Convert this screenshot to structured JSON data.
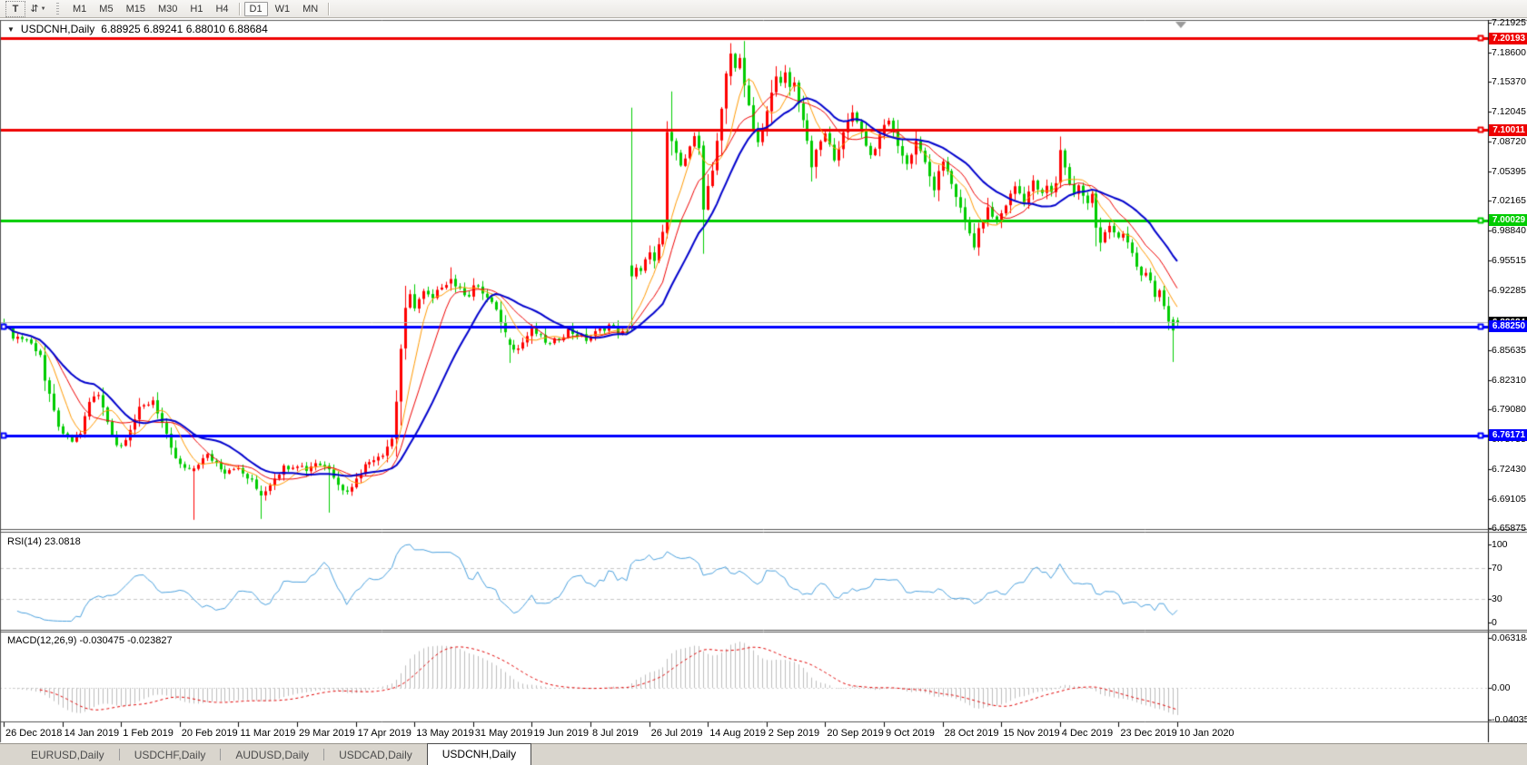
{
  "toolbar": {
    "text_tool_icon": "T",
    "tools_icon": "⇵",
    "tools_caret_icon": "▼",
    "timeframes": [
      "M1",
      "M5",
      "M15",
      "M30",
      "H1",
      "H4",
      "D1",
      "W1",
      "MN"
    ],
    "active_timeframe": "D1"
  },
  "chart": {
    "dropdown_icon": "▼",
    "title": "USDCNH,Daily",
    "ohlc_text": "6.88925 6.89241 6.88010 6.88684"
  },
  "indicators": {
    "rsi": {
      "label": "RSI(14) 23.0818",
      "period": 14,
      "value": 23.0818,
      "levels": [
        70,
        30
      ],
      "scale_labels": [
        {
          "text": "100",
          "value": 100
        },
        {
          "text": "70",
          "value": 70
        },
        {
          "text": "30",
          "value": 30
        },
        {
          "text": "0",
          "value": 0
        }
      ]
    },
    "macd": {
      "label": "MACD(12,26,9) -0.030475 -0.023827",
      "main_value": -0.030475,
      "signal_value": -0.023827,
      "scale_labels": [
        {
          "text": "0.063184",
          "value": 0.063184
        },
        {
          "text": "0.00",
          "value": 0
        },
        {
          "text": "-0.040355",
          "value": -0.040355
        }
      ]
    }
  },
  "tabs": [
    {
      "label": "EURUSD,Daily",
      "active": false
    },
    {
      "label": "USDCHF,Daily",
      "active": false
    },
    {
      "label": "AUDUSD,Daily",
      "active": false
    },
    {
      "label": "USDCAD,Daily",
      "active": false
    },
    {
      "label": "USDCNH,Daily",
      "active": true
    }
  ],
  "chart_data": {
    "type": "candlestick",
    "symbol": "USDCNH",
    "timeframe": "Daily",
    "up_color": "#FF0000",
    "down_color": "#00CC00",
    "last_bar": {
      "open": 6.88925,
      "high": 6.89241,
      "low": 6.8801,
      "close": 6.88684
    },
    "current_price": {
      "value": 6.88684,
      "line_color": "#b4b4b4",
      "badge_bg": "#000000",
      "text": "6.88684"
    },
    "levels": [
      {
        "price": 7.20193,
        "color": "#EE0000",
        "text": "7.20193",
        "left_marker": false
      },
      {
        "price": 7.10011,
        "color": "#EE0000",
        "text": "7.10011",
        "left_marker": false
      },
      {
        "price": 7.00029,
        "color": "#00CC00",
        "text": "7.00029",
        "left_marker": false
      },
      {
        "price": 6.8825,
        "color": "#0000FF",
        "text": "6.88250",
        "left_marker": true
      },
      {
        "price": 6.76171,
        "color": "#0000FF",
        "text": "6.76171",
        "left_marker": true
      }
    ],
    "moving_averages": [
      {
        "name": "fast",
        "window": 7,
        "color": "#FF9900",
        "width": 1
      },
      {
        "name": "medium",
        "window": 12,
        "color": "#EE0000",
        "width": 1
      },
      {
        "name": "slow",
        "window": 21,
        "color": "#0000CC",
        "width": 2
      }
    ],
    "price_axis": {
      "top_value": 7.21925,
      "bottom_value": 6.65875,
      "labels": [
        "7.21925",
        "7.18600",
        "7.15370",
        "7.12045",
        "7.08720",
        "7.05395",
        "7.02165",
        "6.98840",
        "6.95515",
        "6.92285",
        "6.88960",
        "6.85635",
        "6.82310",
        "6.79080",
        "6.75755",
        "6.72430",
        "6.69105",
        "6.65875"
      ]
    },
    "x_axis_labels": [
      "26 Dec 2018",
      "14 Jan 2019",
      "1 Feb 2019",
      "20 Feb 2019",
      "11 Mar 2019",
      "29 Mar 2019",
      "17 Apr 2019",
      "13 May 2019",
      "31 May 2019",
      "19 Jun 2019",
      "8 Jul 2019",
      "26 Jul 2019",
      "14 Aug 2019",
      "2 Sep 2019",
      "20 Sep 2019",
      "9 Oct 2019",
      "28 Oct 2019",
      "15 Nov 2019",
      "4 Dec 2019",
      "23 Dec 2019",
      "10 Jan 2020"
    ],
    "bars_count": 261,
    "bars_per_label": 13,
    "wiggle": 0.0035,
    "close_anchors": [
      [
        0,
        6.885
      ],
      [
        2,
        6.872
      ],
      [
        5,
        6.868
      ],
      [
        8,
        6.852
      ],
      [
        9,
        6.822
      ],
      [
        11,
        6.787
      ],
      [
        13,
        6.76
      ],
      [
        15,
        6.755
      ],
      [
        17,
        6.764
      ],
      [
        19,
        6.8
      ],
      [
        21,
        6.806
      ],
      [
        23,
        6.777
      ],
      [
        25,
        6.752
      ],
      [
        26,
        6.75
      ],
      [
        28,
        6.77
      ],
      [
        30,
        6.79
      ],
      [
        33,
        6.801
      ],
      [
        35,
        6.775
      ],
      [
        37,
        6.745
      ],
      [
        39,
        6.728
      ],
      [
        41,
        6.722
      ],
      [
        43,
        6.731
      ],
      [
        45,
        6.739
      ],
      [
        47,
        6.731
      ],
      [
        49,
        6.722
      ],
      [
        51,
        6.727
      ],
      [
        53,
        6.719
      ],
      [
        55,
        6.71
      ],
      [
        57,
        6.695
      ],
      [
        58,
        6.701
      ],
      [
        60,
        6.716
      ],
      [
        62,
        6.726
      ],
      [
        65,
        6.73
      ],
      [
        67,
        6.724
      ],
      [
        69,
        6.732
      ],
      [
        71,
        6.727
      ],
      [
        73,
        6.718
      ],
      [
        75,
        6.7
      ],
      [
        77,
        6.703
      ],
      [
        78,
        6.716
      ],
      [
        80,
        6.728
      ],
      [
        82,
        6.737
      ],
      [
        84,
        6.742
      ],
      [
        86,
        6.758
      ],
      [
        87,
        6.8
      ],
      [
        88,
        6.858
      ],
      [
        89,
        6.9
      ],
      [
        90,
        6.916
      ],
      [
        91,
        6.905
      ],
      [
        93,
        6.92
      ],
      [
        95,
        6.912
      ],
      [
        97,
        6.928
      ],
      [
        99,
        6.935
      ],
      [
        101,
        6.922
      ],
      [
        103,
        6.918
      ],
      [
        104,
        6.928
      ],
      [
        106,
        6.92
      ],
      [
        108,
        6.908
      ],
      [
        110,
        6.888
      ],
      [
        112,
        6.862
      ],
      [
        114,
        6.858
      ],
      [
        116,
        6.872
      ],
      [
        117,
        6.88
      ],
      [
        119,
        6.87
      ],
      [
        121,
        6.862
      ],
      [
        123,
        6.87
      ],
      [
        125,
        6.878
      ],
      [
        127,
        6.873
      ],
      [
        129,
        6.868
      ],
      [
        130,
        6.872
      ],
      [
        132,
        6.878
      ],
      [
        134,
        6.884
      ],
      [
        136,
        6.877
      ],
      [
        138,
        6.873
      ],
      [
        139,
        6.938
      ],
      [
        140,
        6.948
      ],
      [
        141,
        6.942
      ],
      [
        142,
        6.955
      ],
      [
        143,
        6.962
      ],
      [
        144,
        6.958
      ],
      [
        145,
        6.972
      ],
      [
        146,
        6.985
      ],
      [
        147,
        7.098
      ],
      [
        148,
        7.088
      ],
      [
        149,
        7.075
      ],
      [
        150,
        7.058
      ],
      [
        151,
        7.072
      ],
      [
        152,
        7.085
      ],
      [
        153,
        7.092
      ],
      [
        154,
        7.08
      ],
      [
        155,
        7.012
      ],
      [
        156,
        7.035
      ],
      [
        157,
        7.055
      ],
      [
        158,
        7.09
      ],
      [
        159,
        7.125
      ],
      [
        160,
        7.16
      ],
      [
        161,
        7.185
      ],
      [
        162,
        7.172
      ],
      [
        163,
        7.18
      ],
      [
        164,
        7.152
      ],
      [
        165,
        7.128
      ],
      [
        166,
        7.1
      ],
      [
        167,
        7.085
      ],
      [
        168,
        7.102
      ],
      [
        169,
        7.12
      ],
      [
        170,
        7.145
      ],
      [
        171,
        7.158
      ],
      [
        172,
        7.15
      ],
      [
        173,
        7.162
      ],
      [
        174,
        7.148
      ],
      [
        175,
        7.152
      ],
      [
        176,
        7.132
      ],
      [
        177,
        7.112
      ],
      [
        178,
        7.085
      ],
      [
        179,
        7.06
      ],
      [
        180,
        7.075
      ],
      [
        181,
        7.088
      ],
      [
        182,
        7.095
      ],
      [
        183,
        7.082
      ],
      [
        184,
        7.07
      ],
      [
        185,
        7.082
      ],
      [
        186,
        7.095
      ],
      [
        187,
        7.108
      ],
      [
        188,
        7.12
      ],
      [
        189,
        7.112
      ],
      [
        190,
        7.098
      ],
      [
        191,
        7.085
      ],
      [
        192,
        7.072
      ],
      [
        193,
        7.082
      ],
      [
        194,
        7.092
      ],
      [
        195,
        7.105
      ],
      [
        196,
        7.112
      ],
      [
        197,
        7.098
      ],
      [
        198,
        7.085
      ],
      [
        199,
        7.072
      ],
      [
        200,
        7.062
      ],
      [
        201,
        7.075
      ],
      [
        202,
        7.088
      ],
      [
        203,
        7.078
      ],
      [
        204,
        7.062
      ],
      [
        205,
        7.048
      ],
      [
        206,
        7.035
      ],
      [
        207,
        7.052
      ],
      [
        208,
        7.062
      ],
      [
        209,
        7.055
      ],
      [
        210,
        7.042
      ],
      [
        211,
        7.028
      ],
      [
        212,
        7.012
      ],
      [
        213,
        6.998
      ],
      [
        214,
        6.985
      ],
      [
        215,
        6.972
      ],
      [
        216,
        6.988
      ],
      [
        217,
        7.002
      ],
      [
        218,
        7.012
      ],
      [
        219,
        7.005
      ],
      [
        220,
        6.998
      ],
      [
        221,
        7.008
      ],
      [
        222,
        7.018
      ],
      [
        223,
        7.028
      ],
      [
        224,
        7.038
      ],
      [
        225,
        7.03
      ],
      [
        226,
        7.022
      ],
      [
        227,
        7.032
      ],
      [
        228,
        7.042
      ],
      [
        229,
        7.035
      ],
      [
        230,
        7.028
      ],
      [
        231,
        7.038
      ],
      [
        232,
        7.03
      ],
      [
        233,
        7.042
      ],
      [
        234,
        7.078
      ],
      [
        235,
        7.058
      ],
      [
        236,
        7.042
      ],
      [
        237,
        7.03
      ],
      [
        238,
        7.038
      ],
      [
        239,
        7.028
      ],
      [
        240,
        7.018
      ],
      [
        241,
        7.028
      ],
      [
        242,
        6.992
      ],
      [
        243,
        6.978
      ],
      [
        244,
        6.988
      ],
      [
        245,
        6.995
      ],
      [
        246,
        6.985
      ],
      [
        247,
        6.978
      ],
      [
        248,
        6.985
      ],
      [
        249,
        6.975
      ],
      [
        250,
        6.962
      ],
      [
        251,
        6.95
      ],
      [
        252,
        6.938
      ],
      [
        253,
        6.945
      ],
      [
        254,
        6.93
      ],
      [
        255,
        6.912
      ],
      [
        256,
        6.92
      ],
      [
        257,
        6.906
      ],
      [
        258,
        6.89
      ],
      [
        259,
        6.878
      ],
      [
        260,
        6.88684
      ]
    ],
    "candle_overrides": {
      "42": [
        6.722,
        6.728,
        6.668,
        6.725
      ],
      "57": [
        6.7,
        6.706,
        6.669,
        6.695
      ],
      "72": [
        6.728,
        6.731,
        6.676,
        6.724
      ],
      "99": [
        6.93,
        6.948,
        6.922,
        6.935
      ],
      "112": [
        6.868,
        6.87,
        6.842,
        6.862
      ],
      "139": [
        6.95,
        7.125,
        6.878,
        6.938
      ],
      "147": [
        6.986,
        7.11,
        6.98,
        7.098
      ],
      "148": [
        7.098,
        7.143,
        7.072,
        7.088
      ],
      "155": [
        7.083,
        7.088,
        6.963,
        7.012
      ],
      "161": [
        7.16,
        7.1965,
        7.15,
        7.185
      ],
      "234": [
        7.042,
        7.093,
        7.036,
        7.078
      ],
      "259": [
        6.89,
        6.893,
        6.843,
        6.878
      ],
      "260": [
        6.88925,
        6.89241,
        6.8801,
        6.88684
      ]
    }
  }
}
